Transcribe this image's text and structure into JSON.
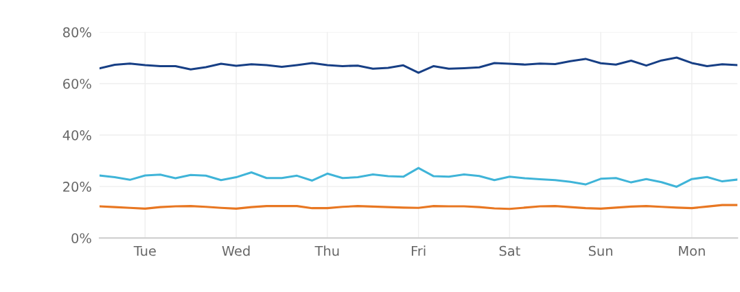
{
  "chart_data": {
    "type": "line",
    "categories": [
      null,
      null,
      null,
      "Tue",
      null,
      null,
      null,
      null,
      null,
      "Wed",
      null,
      null,
      null,
      null,
      null,
      "Thu",
      null,
      null,
      null,
      null,
      null,
      "Fri",
      null,
      null,
      null,
      null,
      null,
      "Sat",
      null,
      null,
      null,
      null,
      null,
      "Sun",
      null,
      null,
      null,
      null,
      null,
      "Mon",
      null,
      null,
      null
    ],
    "ylim": [
      0,
      80
    ],
    "yticks": [
      {
        "value": 0,
        "label": "0%"
      },
      {
        "value": 20,
        "label": "20%"
      },
      {
        "value": 40,
        "label": "40%"
      },
      {
        "value": 60,
        "label": "60%"
      },
      {
        "value": 80,
        "label": "80%"
      }
    ],
    "grid": true,
    "series": [
      {
        "color": "#173f85",
        "values": [
          65.9,
          67.3,
          67.8,
          67.2,
          66.8,
          66.8,
          65.5,
          66.4,
          67.7,
          66.9,
          67.5,
          67.2,
          66.5,
          67.2,
          68.0,
          67.2,
          66.8,
          67.0,
          65.8,
          66.1,
          67.1,
          64.2,
          66.8,
          65.8,
          66.0,
          66.3,
          68.0,
          67.7,
          67.4,
          67.8,
          67.6,
          68.7,
          69.6,
          67.9,
          67.4,
          68.9,
          67.0,
          69.0,
          70.1,
          68.0,
          66.8,
          67.5,
          67.2
        ]
      },
      {
        "color": "#3fb4d8",
        "values": [
          24.3,
          23.6,
          22.6,
          24.3,
          24.6,
          23.2,
          24.5,
          24.2,
          22.5,
          23.6,
          25.5,
          23.3,
          23.3,
          24.2,
          22.3,
          25.0,
          23.3,
          23.6,
          24.7,
          24.0,
          23.8,
          27.2,
          24.0,
          23.8,
          24.7,
          24.1,
          22.5,
          23.8,
          23.2,
          22.8,
          22.5,
          21.8,
          20.8,
          23.0,
          23.3,
          21.6,
          22.9,
          21.7,
          19.9,
          22.9,
          23.7,
          22.0,
          22.7
        ]
      },
      {
        "color": "#e87722",
        "values": [
          12.3,
          12.0,
          11.7,
          11.4,
          12.0,
          12.3,
          12.4,
          12.1,
          11.7,
          11.4,
          12.0,
          12.4,
          12.4,
          12.4,
          11.6,
          11.6,
          12.1,
          12.4,
          12.2,
          12.0,
          11.8,
          11.7,
          12.4,
          12.3,
          12.3,
          12.0,
          11.5,
          11.3,
          11.8,
          12.3,
          12.4,
          12.0,
          11.6,
          11.4,
          11.8,
          12.2,
          12.4,
          12.1,
          11.8,
          11.6,
          12.2,
          12.8,
          12.8
        ]
      }
    ]
  }
}
